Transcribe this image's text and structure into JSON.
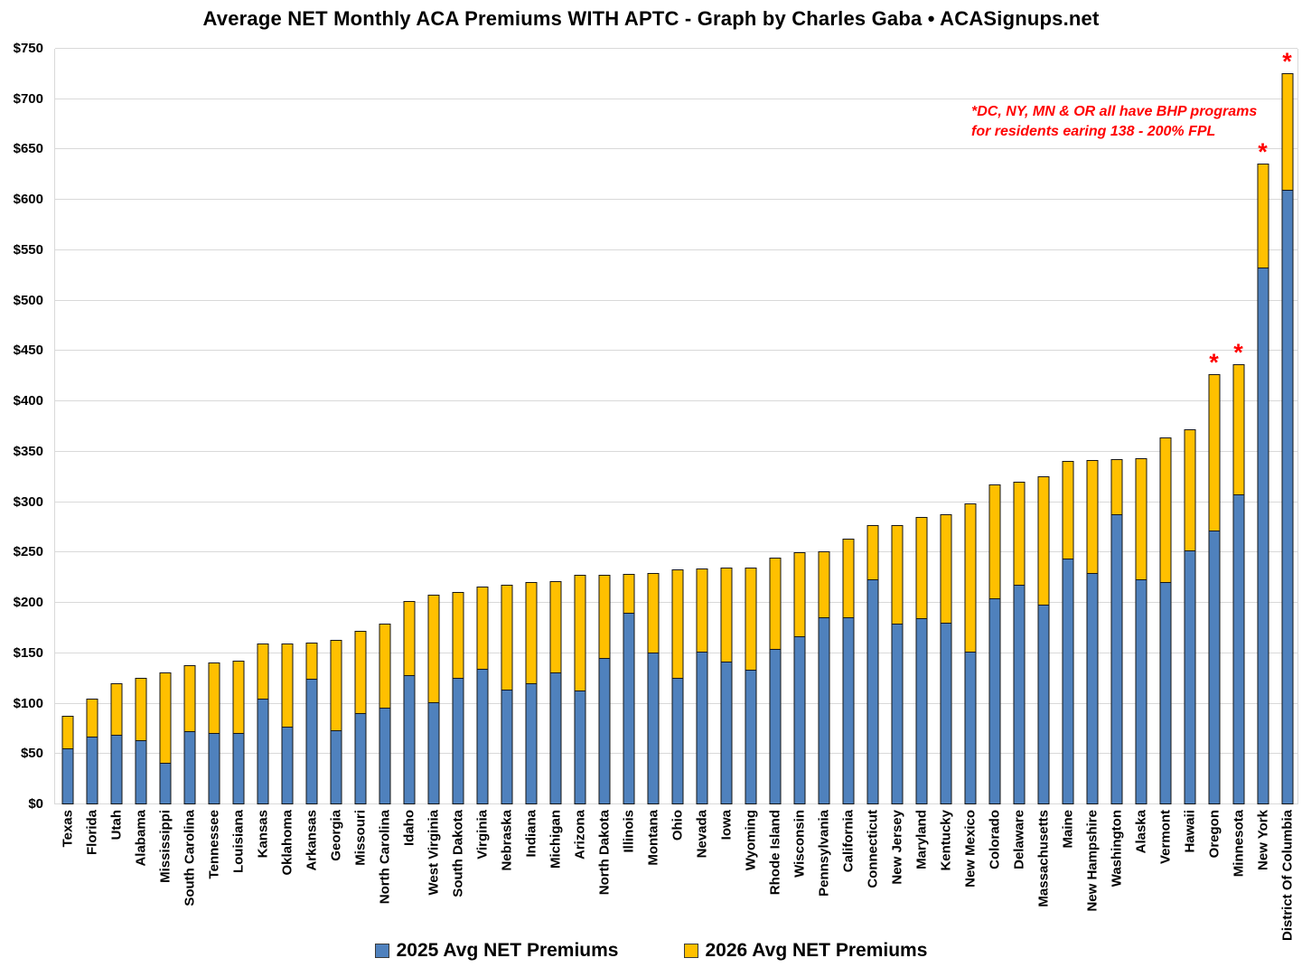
{
  "title": "Average NET Monthly ACA Premiums WITH APTC - Graph by Charles Gaba • ACASignups.net",
  "annotation": {
    "line1": "*DC, NY, MN & OR all have BHP programs",
    "line2": "for residents earing 138 - 200% FPL",
    "color": "#FF0000"
  },
  "legend": {
    "items": [
      {
        "label": "2025 Avg NET Premiums",
        "color": "#4F81BD"
      },
      {
        "label": "2026 Avg NET Premiums",
        "color": "#FFC000"
      }
    ]
  },
  "colors": {
    "bar_2025": "#4F81BD",
    "bar_2026": "#FFC000",
    "bar_border": "#161616",
    "gridline": "#d9d9d9",
    "annotation_red": "#FF0000",
    "text": "#000000",
    "background": "#ffffff"
  },
  "chart_data": {
    "type": "bar",
    "subtype": "stacked-overlay (blue = 2025 value, yellow top = 2026 value)",
    "title": "Average NET Monthly ACA Premiums WITH APTC - Graph by Charles Gaba • ACASignups.net",
    "xlabel": "",
    "ylabel": "",
    "ylim": [
      0,
      750
    ],
    "ytick_interval": 50,
    "ytick_labels": [
      "$0",
      "$50",
      "$100",
      "$150",
      "$200",
      "$250",
      "$300",
      "$350",
      "$400",
      "$450",
      "$500",
      "$550",
      "$600",
      "$650",
      "$700",
      "$750"
    ],
    "grid": true,
    "legend_position": "bottom",
    "categories": [
      "Texas",
      "Florida",
      "Utah",
      "Alabama",
      "Mississippi",
      "South Carolina",
      "Tennessee",
      "Louisiana",
      "Kansas",
      "Oklahoma",
      "Arkansas",
      "Georgia",
      "Missouri",
      "North Carolina",
      "Idaho",
      "West Virginia",
      "South Dakota",
      "Virginia",
      "Nebraska",
      "Indiana",
      "Michigan",
      "Arizona",
      "North Dakota",
      "Illinois",
      "Montana",
      "Ohio",
      "Nevada",
      "Iowa",
      "Wyoming",
      "Rhode Island",
      "Wisconsin",
      "Pennsylvania",
      "California",
      "Connecticut",
      "New Jersey",
      "Maryland",
      "Kentucky",
      "New Mexico",
      "Colorado",
      "Delaware",
      "Massachusetts",
      "Maine",
      "New Hampshire",
      "Washington",
      "Alaska",
      "Vermont",
      "Hawaii",
      "Oregon",
      "Minnesota",
      "New York",
      "District Of Columbia"
    ],
    "series": [
      {
        "name": "2025 Avg NET Premiums",
        "color": "#4F81BD",
        "values": [
          56,
          67,
          69,
          64,
          41,
          73,
          71,
          71,
          105,
          77,
          125,
          74,
          91,
          96,
          128,
          101,
          126,
          135,
          114,
          120,
          131,
          113,
          145,
          190,
          151,
          126,
          152,
          142,
          134,
          154,
          167,
          186,
          186,
          223,
          179,
          185,
          180,
          152,
          205,
          218,
          198,
          244,
          230,
          288,
          223,
          221,
          252,
          272,
          308,
          533,
          610
        ]
      },
      {
        "name": "2026 Avg NET Premiums",
        "color": "#FFC000",
        "values": [
          88,
          105,
          120,
          126,
          131,
          138,
          141,
          143,
          160,
          160,
          161,
          163,
          172,
          179,
          202,
          208,
          211,
          216,
          218,
          221,
          222,
          228,
          228,
          229,
          230,
          233,
          234,
          235,
          235,
          245,
          250,
          251,
          264,
          277,
          277,
          285,
          288,
          299,
          318,
          320,
          326,
          341,
          342,
          343,
          344,
          364,
          372,
          427,
          437,
          636,
          726
        ]
      }
    ],
    "bhp_asterisk_states": [
      "Oregon",
      "Minnesota",
      "New York",
      "District Of Columbia"
    ],
    "bhp_asterisk_symbol": "*"
  }
}
